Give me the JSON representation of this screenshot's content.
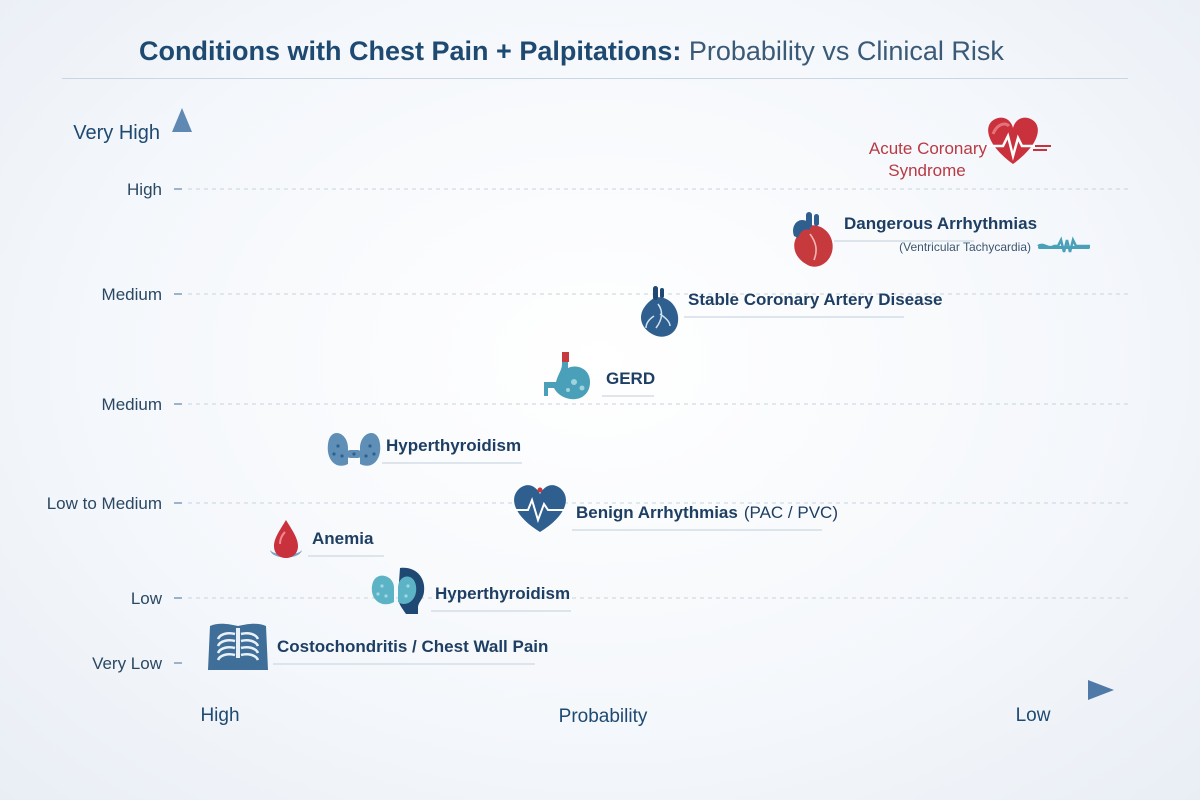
{
  "title": {
    "bold": "Conditions with Chest Pain + Palpitations:",
    "light": "Probability vs Clinical Risk"
  },
  "colors": {
    "axis": "#5b86b3",
    "text": "#1e4a72",
    "danger": "#c0343f",
    "icon_blue": "#2f5f8f",
    "icon_teal": "#5cb3c6",
    "grid": "#c7d3df"
  },
  "chart_data": {
    "type": "scatter",
    "title": "Conditions with Chest Pain + Palpitations: Probability vs Clinical Risk",
    "xlabel": "Probability",
    "ylabel": "",
    "x_ticks": [
      "High",
      "Low"
    ],
    "x_direction": "High on the left, Low on the right",
    "y_top_label": "Very High",
    "y_ticks": [
      "High",
      "Medium",
      "Medium",
      "Low to Medium",
      "Low",
      "Very Low"
    ],
    "grid": "horizontal dashed",
    "points": [
      {
        "label": "Acute Coronary",
        "label2": "Syndrome",
        "sub": "",
        "icon": "heart-pulse-icon",
        "risk": "Very High",
        "probability": 0.08,
        "risk_level": 0.95,
        "danger": true
      },
      {
        "label": "Dangerous Arrhythmias",
        "label2": "",
        "sub": "(Ventricular Tachycardia)",
        "icon": "anatomical-heart-icon",
        "risk": "High",
        "probability": 0.28,
        "risk_level": 0.84,
        "danger": false
      },
      {
        "label": "Stable Coronary Artery Disease",
        "label2": "",
        "sub": "",
        "icon": "heart-vessels-icon",
        "risk": "Medium",
        "probability": 0.42,
        "risk_level": 0.68,
        "danger": false
      },
      {
        "label": "GERD",
        "label2": "",
        "sub": "",
        "icon": "stomach-icon",
        "risk": "Medium",
        "probability": 0.55,
        "risk_level": 0.54,
        "danger": false
      },
      {
        "label": "Hyperthyroidism",
        "label2": "",
        "sub": "",
        "icon": "thyroid-icon",
        "risk": "Low to Medium",
        "probability": 0.84,
        "risk_level": 0.42,
        "danger": false
      },
      {
        "label": "Benign Arrhythmias",
        "label2": "(PAC / PVC)",
        "sub": "",
        "icon": "heart-ecg-icon",
        "risk": "Low to Medium",
        "probability": 0.62,
        "risk_level": 0.3,
        "danger": false
      },
      {
        "label": "Anemia",
        "label2": "",
        "sub": "",
        "icon": "blood-drop-icon",
        "risk": "Low",
        "probability": 0.91,
        "risk_level": 0.24,
        "danger": false
      },
      {
        "label": "Hyperthyroidism",
        "label2": "",
        "sub": "",
        "icon": "thyroid-head-icon",
        "risk": "Low",
        "probability": 0.76,
        "risk_level": 0.14,
        "danger": false
      },
      {
        "label": "Costochondritis / Chest Wall Pain",
        "label2": "",
        "sub": "",
        "icon": "ribcage-icon",
        "risk": "Very Low",
        "probability": 0.96,
        "risk_level": 0.06,
        "danger": false
      }
    ]
  }
}
